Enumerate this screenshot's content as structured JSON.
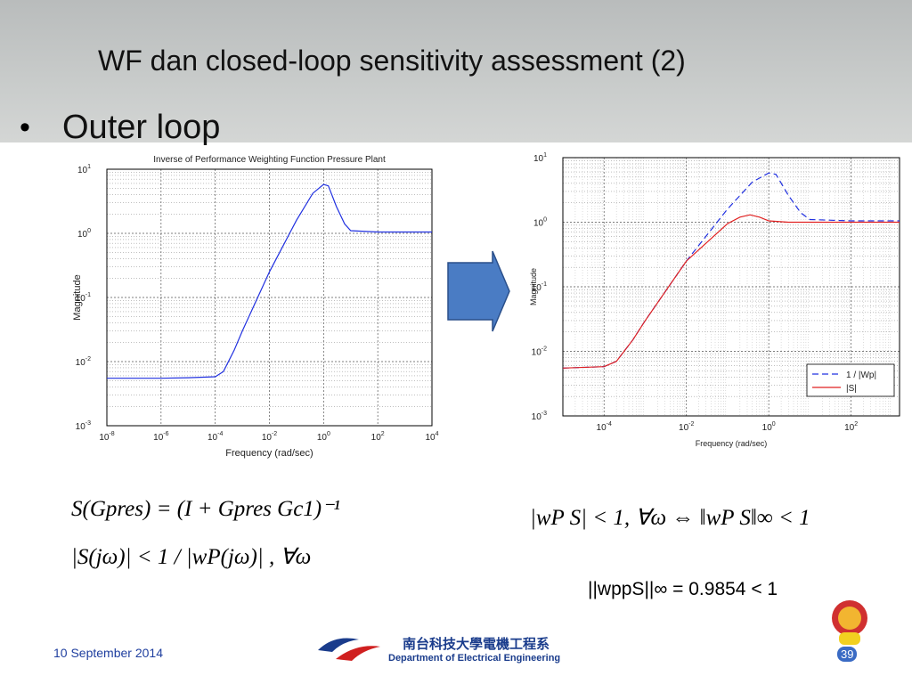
{
  "title": "WF dan closed-loop sensitivity assessment (2)",
  "bullet": "Outer loop",
  "equations": {
    "left_1": "S(Gpres) = (I + Gpres Gc1)⁻¹",
    "left_2": "|S(jω)| < 1 / |wP(jω)| , ∀ω",
    "right_1": "|wP S| < 1, ∀ω  ⇔  ‖wP S‖∞ < 1"
  },
  "norm_result": "||wppS||∞ = 0.9854 < 1",
  "date": "10 September 2014",
  "page_number": "39",
  "logo": {
    "chinese": "南台科技大學電機工程系",
    "english": "Department of Electrical Engineering"
  },
  "chart_data": [
    {
      "type": "line",
      "title": "Inverse of Performance Weighting Function Pressure Plant",
      "xlabel": "Frequency (rad/sec)",
      "ylabel": "Magnitude",
      "xscale": "log",
      "yscale": "log",
      "grid": true,
      "xlim": [
        1e-08,
        10000.0
      ],
      "ylim": [
        0.001,
        10
      ],
      "xticks": [
        {
          "value": 1e-08,
          "label": "10",
          "exponent": "-8"
        },
        {
          "value": 1e-06,
          "label": "10",
          "exponent": "-6"
        },
        {
          "value": 0.0001,
          "label": "10",
          "exponent": "-4"
        },
        {
          "value": 0.01,
          "label": "10",
          "exponent": "-2"
        },
        {
          "value": 1,
          "label": "10",
          "exponent": "0"
        },
        {
          "value": 100,
          "label": "10",
          "exponent": "2"
        },
        {
          "value": 10000,
          "label": "10",
          "exponent": "4"
        }
      ],
      "yticks": [
        {
          "value": 0.001,
          "label": "10",
          "exponent": "-3"
        },
        {
          "value": 0.01,
          "label": "10",
          "exponent": "-2"
        },
        {
          "value": 0.1,
          "label": "10",
          "exponent": "-1"
        },
        {
          "value": 1,
          "label": "10",
          "exponent": "0"
        },
        {
          "value": 10,
          "label": "10",
          "exponent": "1"
        }
      ],
      "series": [
        {
          "color": "#2030e0",
          "dash": false,
          "x": [
            1e-08,
            1e-06,
            1e-05,
            0.0001,
            0.0002,
            0.0005,
            0.001,
            0.01,
            0.1,
            0.4,
            1,
            1.5,
            3,
            6,
            10,
            100,
            10000
          ],
          "values": [
            0.0055,
            0.0055,
            0.0056,
            0.0058,
            0.007,
            0.015,
            0.03,
            0.25,
            1.6,
            4.2,
            5.8,
            5.5,
            2.6,
            1.4,
            1.1,
            1.05,
            1.05
          ]
        }
      ]
    },
    {
      "type": "line",
      "xlabel": "Frequency  (rad/sec)",
      "ylabel": "Magnitude",
      "xscale": "log",
      "yscale": "log",
      "grid": true,
      "legend": "lower right",
      "xlim": [
        1e-05,
        1500
      ],
      "ylim": [
        0.001,
        10
      ],
      "xticks": [
        {
          "value": 0.0001,
          "label": "10",
          "exponent": "-4"
        },
        {
          "value": 0.01,
          "label": "10",
          "exponent": "-2"
        },
        {
          "value": 1,
          "label": "10",
          "exponent": "0"
        },
        {
          "value": 100,
          "label": "10",
          "exponent": "2"
        }
      ],
      "yticks": [
        {
          "value": 0.001,
          "label": "10",
          "exponent": "-3"
        },
        {
          "value": 0.01,
          "label": "10",
          "exponent": "-2"
        },
        {
          "value": 0.1,
          "label": "10",
          "exponent": "-1"
        },
        {
          "value": 1,
          "label": "10",
          "exponent": "0"
        },
        {
          "value": 10,
          "label": "10",
          "exponent": "1"
        }
      ],
      "series": [
        {
          "name": "1 / |Wp|",
          "color": "#2030e0",
          "dash": true,
          "x": [
            1e-05,
            0.0001,
            0.0002,
            0.0005,
            0.001,
            0.01,
            0.1,
            0.4,
            1,
            1.5,
            3,
            6,
            10,
            100,
            1500
          ],
          "values": [
            0.0055,
            0.0058,
            0.007,
            0.015,
            0.03,
            0.25,
            1.6,
            4.2,
            5.8,
            5.5,
            2.6,
            1.4,
            1.1,
            1.05,
            1.05
          ]
        },
        {
          "name": "|S|",
          "color": "#e02020",
          "dash": false,
          "x": [
            1e-05,
            0.0001,
            0.0002,
            0.0005,
            0.001,
            0.01,
            0.1,
            0.2,
            0.35,
            0.6,
            1,
            3,
            10,
            100,
            1500
          ],
          "values": [
            0.0055,
            0.0058,
            0.007,
            0.015,
            0.03,
            0.25,
            0.95,
            1.2,
            1.3,
            1.2,
            1.05,
            1.0,
            1.0,
            1.0,
            1.0
          ]
        }
      ]
    }
  ]
}
